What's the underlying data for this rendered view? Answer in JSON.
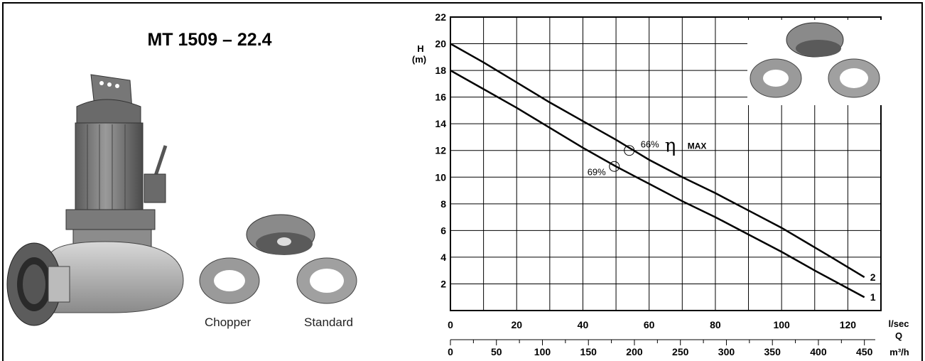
{
  "product": {
    "title": "MT 1509 – 22.4",
    "impeller_labels": [
      "Chopper",
      "Standard"
    ]
  },
  "chart_data": {
    "type": "line",
    "y_axis_label_1": "H",
    "y_axis_label_2": "(m)",
    "ylim": [
      0,
      22
    ],
    "yticks": [
      "2",
      "4",
      "6",
      "8",
      "10",
      "12",
      "14",
      "16",
      "18",
      "20",
      "22"
    ],
    "x_primary": {
      "label": "l/sec",
      "ticks": [
        "0",
        "20",
        "40",
        "60",
        "80",
        "100",
        "120"
      ],
      "tick_values": [
        0,
        20,
        40,
        60,
        80,
        100,
        120
      ],
      "range": [
        0,
        130
      ]
    },
    "x_axis_symbol": "Q",
    "x_secondary": {
      "label": "m³/h",
      "ticks": [
        "0",
        "50",
        "100",
        "150",
        "200",
        "250",
        "300",
        "350",
        "400",
        "450"
      ],
      "tick_values": [
        0,
        50,
        100,
        150,
        200,
        250,
        300,
        350,
        400,
        450
      ]
    },
    "grid": true,
    "series": [
      {
        "name": "1",
        "x": [
          0,
          10,
          20,
          30,
          40,
          50,
          60,
          70,
          80,
          90,
          100,
          110,
          125
        ],
        "y": [
          18,
          16.6,
          15.2,
          13.7,
          12.2,
          10.8,
          9.5,
          8.2,
          7.0,
          5.7,
          4.4,
          3.0,
          1.0
        ]
      },
      {
        "name": "2",
        "x": [
          0,
          10,
          20,
          30,
          40,
          50,
          60,
          70,
          80,
          90,
          100,
          115,
          125
        ],
        "y": [
          20,
          18.6,
          17.1,
          15.6,
          14.2,
          12.8,
          11.3,
          10.0,
          8.8,
          7.5,
          6.2,
          4.0,
          2.5
        ]
      }
    ],
    "annotations": [
      {
        "text": "69%",
        "x": 49.5,
        "y": 10.8
      },
      {
        "text": "66%",
        "x": 54,
        "y": 12.0
      }
    ],
    "eta_symbol": "η",
    "eta_label": "MAX"
  }
}
